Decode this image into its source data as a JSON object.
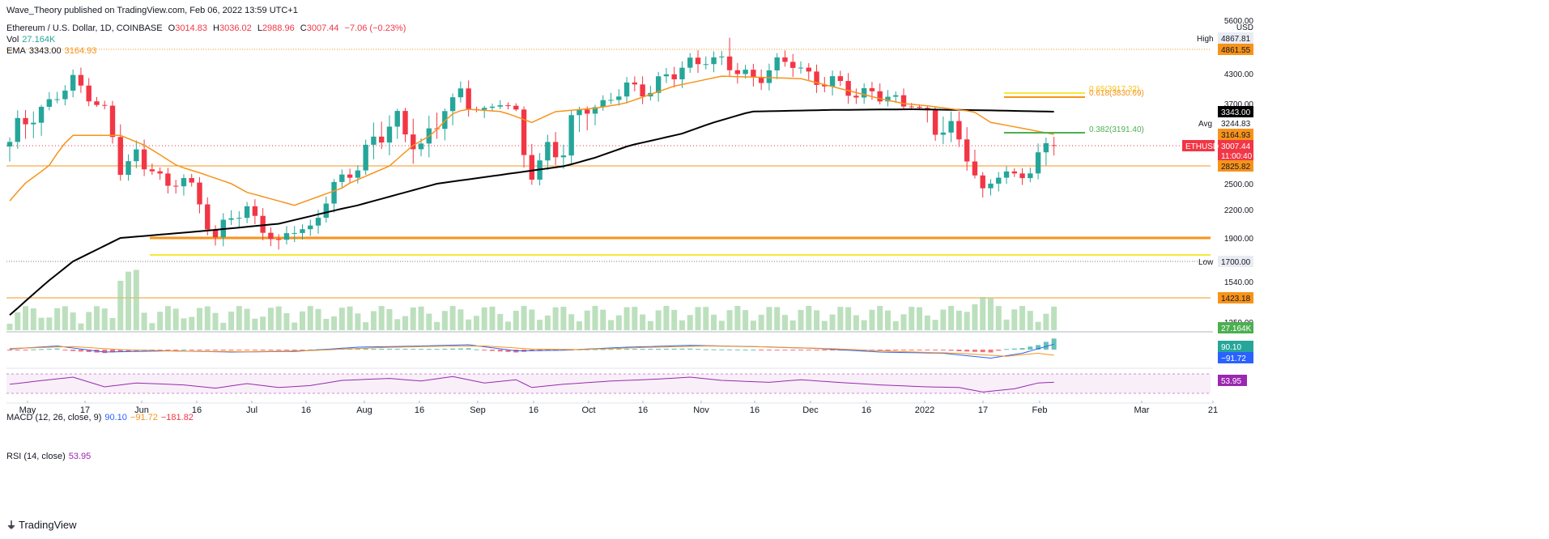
{
  "header": {
    "published": "Wave_Theory published on TradingView.com, Feb 06, 2022 13:59 UTC+1",
    "symbol": "Ethereum / U.S. Dollar, 1D, COINBASE",
    "o_label": "O",
    "o_val": "3014.83",
    "h_label": "H",
    "h_val": "3036.02",
    "l_label": "L",
    "l_val": "2988.96",
    "c_label": "C",
    "c_val": "3007.44",
    "chg": "−7.06 (−0.23%)",
    "vol_label": "Vol",
    "vol_val": "27.164K",
    "ema_label": "EMA",
    "ema1": "3343.00",
    "ema2": "3164.93",
    "macd_label": "MACD (12, 26, close, 9)",
    "macd1": "90.10",
    "macd2": "−91.72",
    "macd3": "−181.82",
    "rsi_label": "RSI (14, close)",
    "rsi_val": "53.95"
  },
  "footer": {
    "brand": "TradingView"
  },
  "colors": {
    "up": "#26a69a",
    "down": "#f23645",
    "ema_fast": "#f7931a",
    "ema_slow": "#000000",
    "fib618": "#f7931a",
    "fib382": "#4caf50",
    "level_orange": "#f7931a",
    "level_yellow": "#f5e93a",
    "macd": "#2962ff",
    "signal": "#f7931a",
    "rsi": "#9c27b0"
  },
  "chart_data": {
    "type": "candlestick",
    "symbol": "ETHUSD",
    "ylim": [
      1250,
      5600
    ],
    "y_ticks": [
      "5600.00",
      "4300.00",
      "3700.00",
      "2500.00",
      "2200.00",
      "1900.00",
      "1540.00",
      "1250.00"
    ],
    "x_ticks": [
      "May",
      "17",
      "Jun",
      "16",
      "Jul",
      "16",
      "Aug",
      "16",
      "Sep",
      "16",
      "Oct",
      "16",
      "Nov",
      "16",
      "Dec",
      "16",
      "2022",
      "17",
      "Feb",
      "Mar",
      "21"
    ],
    "price_labels": [
      {
        "text": "High",
        "value": "4867.81"
      },
      {
        "text": "",
        "value": "4861.55"
      },
      {
        "text": "",
        "value": "3343.00"
      },
      {
        "text": "Avg",
        "value": "3244.83"
      },
      {
        "text": "",
        "value": "3164.93"
      },
      {
        "text": "ETHUSD",
        "value": "3007.44",
        "countdown": "11:00:40"
      },
      {
        "text": "",
        "value": "2825.82"
      },
      {
        "text": "Low",
        "value": "1700.00"
      },
      {
        "text": "",
        "value": "1423.18"
      },
      {
        "text": "",
        "value": "27.164K"
      }
    ],
    "fib_labels": [
      {
        "text": "0.65(3917.32)"
      },
      {
        "text": "0.618(3830.69)"
      },
      {
        "text": "0.382(3191.40)"
      }
    ],
    "horizontal_levels": [
      4861.55,
      2825.82,
      1900,
      1700
    ],
    "close_anchors": [
      [
        0,
        3000
      ],
      [
        5,
        3700
      ],
      [
        8,
        4100
      ],
      [
        10,
        3950
      ],
      [
        12,
        3500
      ],
      [
        14,
        2700
      ],
      [
        16,
        2900
      ],
      [
        18,
        2850
      ],
      [
        20,
        2400
      ],
      [
        22,
        2600
      ],
      [
        24,
        2300
      ],
      [
        26,
        1900
      ],
      [
        28,
        2100
      ],
      [
        30,
        2200
      ],
      [
        32,
        2050
      ],
      [
        34,
        1800
      ],
      [
        36,
        2000
      ],
      [
        38,
        2000
      ],
      [
        40,
        2350
      ],
      [
        43,
        2650
      ],
      [
        46,
        3150
      ],
      [
        49,
        3200
      ],
      [
        52,
        3050
      ],
      [
        55,
        3400
      ],
      [
        57,
        3900
      ],
      [
        58,
        3600
      ],
      [
        60,
        3450
      ],
      [
        62,
        3700
      ],
      [
        64,
        3300
      ],
      [
        66,
        2700
      ],
      [
        68,
        3000
      ],
      [
        70,
        2900
      ],
      [
        72,
        3450
      ],
      [
        75,
        3650
      ],
      [
        78,
        4000
      ],
      [
        81,
        4050
      ],
      [
        84,
        4250
      ],
      [
        86,
        4550
      ],
      [
        88,
        4750
      ],
      [
        89,
        4600
      ],
      [
        91,
        4400
      ],
      [
        94,
        4250
      ],
      [
        96,
        4400
      ],
      [
        98,
        4500
      ],
      [
        99,
        4550
      ],
      [
        101,
        4300
      ],
      [
        103,
        4150
      ],
      [
        105,
        4000
      ],
      [
        107,
        3900
      ],
      [
        109,
        4000
      ],
      [
        111,
        3750
      ],
      [
        113,
        3600
      ],
      [
        114,
        3700
      ],
      [
        115,
        3500
      ],
      [
        117,
        3250
      ],
      [
        119,
        3100
      ],
      [
        121,
        3000
      ],
      [
        123,
        2400
      ],
      [
        125,
        2650
      ],
      [
        127,
        2600
      ],
      [
        129,
        2800
      ],
      [
        131,
        3000
      ],
      [
        132,
        3007
      ]
    ],
    "ema_fast_anchors": [
      [
        0,
        2300
      ],
      [
        8,
        3150
      ],
      [
        14,
        3150
      ],
      [
        24,
        2700
      ],
      [
        30,
        2400
      ],
      [
        36,
        2250
      ],
      [
        42,
        2450
      ],
      [
        50,
        2950
      ],
      [
        58,
        3450
      ],
      [
        66,
        3250
      ],
      [
        74,
        3500
      ],
      [
        84,
        4050
      ],
      [
        90,
        4250
      ],
      [
        100,
        4200
      ],
      [
        110,
        3800
      ],
      [
        116,
        3600
      ],
      [
        124,
        3250
      ],
      [
        132,
        3165
      ]
    ],
    "ema_slow_anchors": [
      [
        0,
        1300
      ],
      [
        8,
        1700
      ],
      [
        14,
        1900
      ],
      [
        24,
        1970
      ],
      [
        34,
        2050
      ],
      [
        44,
        2250
      ],
      [
        54,
        2500
      ],
      [
        64,
        2700
      ],
      [
        74,
        2900
      ],
      [
        84,
        3150
      ],
      [
        94,
        3350
      ],
      [
        104,
        3420
      ],
      [
        114,
        3450
      ],
      [
        124,
        3400
      ],
      [
        132,
        3343
      ]
    ],
    "rsi_anchors": [
      [
        0,
        48
      ],
      [
        5,
        62
      ],
      [
        8,
        70
      ],
      [
        12,
        40
      ],
      [
        16,
        52
      ],
      [
        22,
        46
      ],
      [
        26,
        36
      ],
      [
        30,
        50
      ],
      [
        34,
        38
      ],
      [
        38,
        44
      ],
      [
        42,
        60
      ],
      [
        48,
        66
      ],
      [
        52,
        58
      ],
      [
        56,
        72
      ],
      [
        60,
        52
      ],
      [
        64,
        62
      ],
      [
        66,
        38
      ],
      [
        70,
        48
      ],
      [
        76,
        58
      ],
      [
        82,
        64
      ],
      [
        86,
        70
      ],
      [
        90,
        60
      ],
      [
        96,
        54
      ],
      [
        100,
        62
      ],
      [
        104,
        55
      ],
      [
        110,
        46
      ],
      [
        116,
        40
      ],
      [
        120,
        38
      ],
      [
        123,
        24
      ],
      [
        127,
        34
      ],
      [
        130,
        52
      ],
      [
        132,
        54
      ]
    ],
    "macd_anchors": [
      [
        0,
        10
      ],
      [
        6,
        60
      ],
      [
        12,
        -40
      ],
      [
        20,
        -20
      ],
      [
        28,
        -40
      ],
      [
        36,
        -30
      ],
      [
        44,
        40
      ],
      [
        52,
        60
      ],
      [
        58,
        80
      ],
      [
        64,
        -20
      ],
      [
        70,
        -10
      ],
      [
        78,
        40
      ],
      [
        86,
        70
      ],
      [
        94,
        50
      ],
      [
        102,
        20
      ],
      [
        110,
        -40
      ],
      [
        118,
        -60
      ],
      [
        124,
        -140
      ],
      [
        128,
        -60
      ],
      [
        132,
        90
      ]
    ],
    "signal_anchors": [
      [
        0,
        20
      ],
      [
        8,
        50
      ],
      [
        14,
        0
      ],
      [
        22,
        -25
      ],
      [
        30,
        -35
      ],
      [
        38,
        -15
      ],
      [
        46,
        30
      ],
      [
        54,
        55
      ],
      [
        60,
        60
      ],
      [
        66,
        10
      ],
      [
        72,
        0
      ],
      [
        80,
        35
      ],
      [
        88,
        60
      ],
      [
        96,
        45
      ],
      [
        104,
        15
      ],
      [
        112,
        -30
      ],
      [
        120,
        -60
      ],
      [
        126,
        -110
      ],
      [
        130,
        -60
      ],
      [
        132,
        -92
      ]
    ]
  }
}
